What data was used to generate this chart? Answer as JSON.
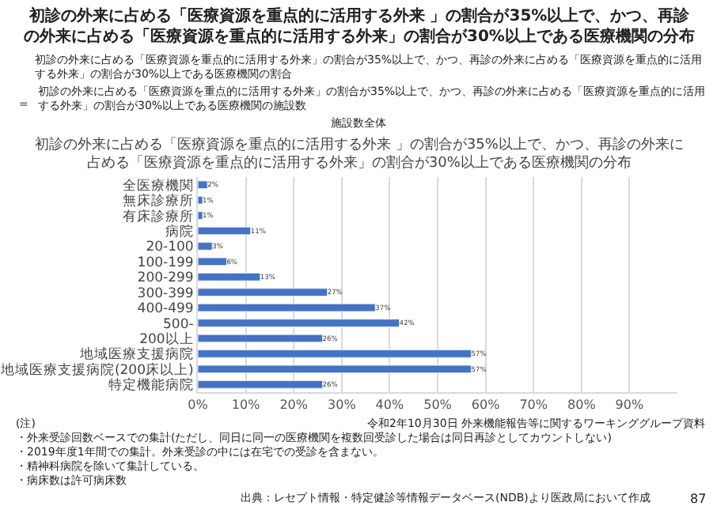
{
  "chart_data": {
    "type": "bar",
    "orientation": "horizontal",
    "title": "初診の外来に占める「医療資源を重点的に活用する外来 」の割合が35%以上で、かつ、再診の外来に占める「医療資源を重点的に活用する外来」の割合が30%以上である医療機関の分布",
    "subtitle": "初診の外来に占める「医療資源を重点的に活用する外来 」の割合が35%以上で、かつ、再診の外来に占める「医療資源を重点的に活用する外来」の割合が30%以上である医療機関の分布",
    "categories": [
      "全医療機関",
      "無床診療所",
      "有床診療所",
      "病院",
      "20-100",
      "100-199",
      "200-299",
      "300-399",
      "400-499",
      "500-",
      "200以上",
      "地域医療支援病院",
      "地域医療支援病院(200床以上)",
      "特定機能病院"
    ],
    "values": [
      2,
      1,
      1,
      11,
      3,
      6,
      13,
      27,
      37,
      42,
      26,
      57,
      57,
      26
    ],
    "value_labels": [
      "2%",
      "1%",
      "1%",
      "11%",
      "3%",
      "6%",
      "13%",
      "27%",
      "37%",
      "42%",
      "26%",
      "57%",
      "57%",
      "26%"
    ],
    "color": "#4472c4",
    "xlim": [
      0,
      100
    ],
    "xticks": [
      {
        "value": 0,
        "label": "0%"
      },
      {
        "value": 10,
        "label": "10%"
      },
      {
        "value": 20,
        "label": "20%"
      },
      {
        "value": 30,
        "label": "30%"
      },
      {
        "value": 40,
        "label": "40%"
      },
      {
        "value": 50,
        "label": "50%"
      },
      {
        "value": 60,
        "label": "60%"
      },
      {
        "value": 70,
        "label": "70%"
      },
      {
        "value": 80,
        "label": "80%"
      },
      {
        "value": 90,
        "label": "90%"
      }
    ],
    "grid": "x",
    "annotations": [
      "令和2年10月30日 外来機能報告等に関するワーキンググループ資料",
      "初診の外来に占める「医療資源を重点的に活用する外来」の割合が35%以上で、かつ、再診の外来に占める「医療資源を重点的に活用する外来」の割合が30%以上である医療機関の割合",
      "=",
      "初診の外来に占める「医療資源を重点的に活用する外来」の割合が35%以上で、かつ、再診の外来に占める「医療資源を重点的に活用する外来」の割合が30%以上である医療機関の施設数",
      "施設数全体",
      "(注)",
      "・外来受診回数ベースでの集計(ただし、同日に同一の医療機関を複数回受診した場合は同日再診としてカウントしない)",
      "・2019年度1年間での集計。外来受診の中には在宅での受診を含まない。",
      "・精神科病院を除いて集計している。",
      "・病床数は許可病床数",
      "出典：レセプト情報・特定健診等情報データベース(NDB)より医政局において作成",
      "87"
    ]
  }
}
